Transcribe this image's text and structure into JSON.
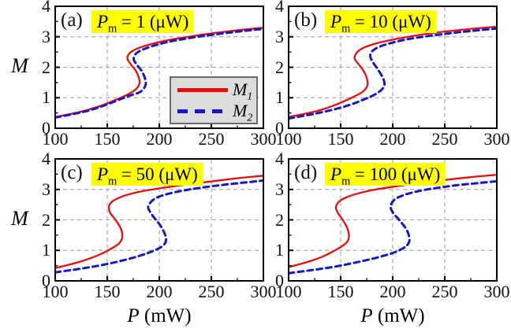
{
  "figure": {
    "colors": {
      "m1": "#e60d0d",
      "m2": "#1717c3",
      "grid": "#ababab",
      "frame": "#000000",
      "text": "#111111",
      "annotation_bg": "#ffff00",
      "legend_bg": "#dcdcdc",
      "legend_border": "#646b76",
      "background": "#ffffff"
    },
    "x_axis": {
      "symbol": "P",
      "unit": "(mW)",
      "tick_labels": [
        "100",
        "150",
        "200",
        "250",
        "300"
      ],
      "tick_values": [
        100,
        150,
        200,
        250,
        300
      ],
      "minor_tick_values": [
        125,
        175,
        225,
        275
      ],
      "grid_values": [
        150,
        200,
        250
      ],
      "range": [
        100,
        300
      ]
    },
    "y_axis": {
      "symbol": "M",
      "tick_labels": [
        "0",
        "1",
        "2",
        "3",
        "4"
      ],
      "tick_values": [
        0,
        1,
        2,
        3,
        4
      ],
      "minor_tick_values": [
        0.5,
        1.5,
        2.5,
        3.5
      ],
      "grid_values": [
        1,
        2,
        3
      ],
      "range": [
        0,
        4
      ]
    },
    "legend": {
      "entries": [
        {
          "symbol": "M",
          "sub": "1",
          "style": "solid",
          "color_key": "m1"
        },
        {
          "symbol": "M",
          "sub": "2",
          "style": "dashed",
          "color_key": "m2"
        }
      ]
    }
  },
  "chart_data": {
    "type": "line",
    "title": "",
    "xlabel": "P (mW)",
    "ylabel": "M",
    "xlim": [
      100,
      300
    ],
    "ylim": [
      0,
      4
    ],
    "grid": true,
    "legend_position": "lower right of panel (a)",
    "panels": [
      {
        "id": "a",
        "letter": "(a)",
        "annotation": {
          "symbol": "P",
          "sub": "m",
          "eq": "=",
          "value": "1",
          "unit": "(μW)"
        },
        "series": [
          {
            "name": "M1",
            "color_key": "m1",
            "style": "solid",
            "points": [
              [
                100,
                0.37
              ],
              [
                115,
                0.47
              ],
              [
                130,
                0.59
              ],
              [
                145,
                0.75
              ],
              [
                158,
                0.93
              ],
              [
                168,
                1.08
              ],
              [
                175,
                1.21
              ],
              [
                180,
                1.38
              ],
              [
                181,
                1.56
              ],
              [
                178,
                1.85
              ],
              [
                173,
                2.08
              ],
              [
                169.5,
                2.27
              ],
              [
                170.5,
                2.42
              ],
              [
                174,
                2.53
              ],
              [
                181,
                2.64
              ],
              [
                192,
                2.76
              ],
              [
                207,
                2.88
              ],
              [
                228,
                3.0
              ],
              [
                252,
                3.12
              ],
              [
                277,
                3.22
              ],
              [
                300,
                3.3
              ]
            ]
          },
          {
            "name": "M2",
            "color_key": "m2",
            "style": "dashed",
            "points": [
              [
                100,
                0.35
              ],
              [
                115,
                0.45
              ],
              [
                130,
                0.56
              ],
              [
                145,
                0.72
              ],
              [
                158,
                0.89
              ],
              [
                170,
                1.05
              ],
              [
                181,
                1.18
              ],
              [
                186,
                1.35
              ],
              [
                187,
                1.53
              ],
              [
                184,
                1.83
              ],
              [
                179,
                2.06
              ],
              [
                175.5,
                2.25
              ],
              [
                176.5,
                2.4
              ],
              [
                180,
                2.51
              ],
              [
                187,
                2.62
              ],
              [
                197,
                2.73
              ],
              [
                211,
                2.85
              ],
              [
                231,
                2.97
              ],
              [
                254,
                3.08
              ],
              [
                278,
                3.18
              ],
              [
                300,
                3.26
              ]
            ]
          }
        ]
      },
      {
        "id": "b",
        "letter": "(b)",
        "annotation": {
          "symbol": "P",
          "sub": "m",
          "eq": "=",
          "value": "10",
          "unit": "(μW)"
        },
        "series": [
          {
            "name": "M1",
            "color_key": "m1",
            "style": "solid",
            "points": [
              [
                100,
                0.37
              ],
              [
                115,
                0.47
              ],
              [
                130,
                0.59
              ],
              [
                143,
                0.74
              ],
              [
                155,
                0.91
              ],
              [
                164,
                1.06
              ],
              [
                171,
                1.19
              ],
              [
                175,
                1.35
              ],
              [
                176,
                1.52
              ],
              [
                173,
                1.82
              ],
              [
                168,
                2.07
              ],
              [
                163.5,
                2.28
              ],
              [
                164.5,
                2.43
              ],
              [
                168,
                2.56
              ],
              [
                175,
                2.68
              ],
              [
                186,
                2.8
              ],
              [
                201,
                2.91
              ],
              [
                220,
                3.03
              ],
              [
                245,
                3.15
              ],
              [
                272,
                3.25
              ],
              [
                300,
                3.33
              ]
            ]
          },
          {
            "name": "M2",
            "color_key": "m2",
            "style": "dashed",
            "points": [
              [
                100,
                0.32
              ],
              [
                115,
                0.41
              ],
              [
                130,
                0.51
              ],
              [
                145,
                0.63
              ],
              [
                160,
                0.78
              ],
              [
                172,
                0.94
              ],
              [
                182,
                1.09
              ],
              [
                189,
                1.25
              ],
              [
                192,
                1.42
              ],
              [
                191,
                1.62
              ],
              [
                186,
                1.92
              ],
              [
                181,
                2.16
              ],
              [
                178.5,
                2.35
              ],
              [
                179.5,
                2.49
              ],
              [
                183,
                2.6
              ],
              [
                190,
                2.71
              ],
              [
                200,
                2.81
              ],
              [
                214,
                2.92
              ],
              [
                233,
                3.02
              ],
              [
                256,
                3.12
              ],
              [
                278,
                3.2
              ],
              [
                300,
                3.27
              ]
            ]
          }
        ]
      },
      {
        "id": "c",
        "letter": "(c)",
        "annotation": {
          "symbol": "P",
          "sub": "m",
          "eq": "=",
          "value": "50",
          "unit": "(μW)"
        },
        "series": [
          {
            "name": "M1",
            "color_key": "m1",
            "style": "solid",
            "points": [
              [
                100,
                0.42
              ],
              [
                112,
                0.52
              ],
              [
                124,
                0.63
              ],
              [
                136,
                0.77
              ],
              [
                147,
                0.93
              ],
              [
                156,
                1.1
              ],
              [
                162,
                1.25
              ],
              [
                164.5,
                1.45
              ],
              [
                163,
                1.72
              ],
              [
                158,
                2.0
              ],
              [
                153,
                2.22
              ],
              [
                151.5,
                2.38
              ],
              [
                152.5,
                2.52
              ],
              [
                156,
                2.63
              ],
              [
                163,
                2.75
              ],
              [
                173,
                2.86
              ],
              [
                187,
                2.96
              ],
              [
                205,
                3.06
              ],
              [
                228,
                3.17
              ],
              [
                252,
                3.27
              ],
              [
                276,
                3.37
              ],
              [
                300,
                3.45
              ]
            ]
          },
          {
            "name": "M2",
            "color_key": "m2",
            "style": "dashed",
            "points": [
              [
                100,
                0.28
              ],
              [
                115,
                0.35
              ],
              [
                130,
                0.43
              ],
              [
                145,
                0.52
              ],
              [
                160,
                0.63
              ],
              [
                175,
                0.76
              ],
              [
                188,
                0.9
              ],
              [
                198,
                1.04
              ],
              [
                204,
                1.17
              ],
              [
                206.5,
                1.33
              ],
              [
                205.5,
                1.52
              ],
              [
                201,
                1.82
              ],
              [
                194,
                2.12
              ],
              [
                189.5,
                2.38
              ],
              [
                190.5,
                2.52
              ],
              [
                193.5,
                2.64
              ],
              [
                199,
                2.75
              ],
              [
                208,
                2.85
              ],
              [
                221,
                2.95
              ],
              [
                239,
                3.05
              ],
              [
                259,
                3.14
              ],
              [
                280,
                3.22
              ],
              [
                300,
                3.29
              ]
            ]
          }
        ]
      },
      {
        "id": "d",
        "letter": "(d)",
        "annotation": {
          "symbol": "P",
          "sub": "m",
          "eq": "=",
          "value": "100",
          "unit": "(μW)"
        },
        "series": [
          {
            "name": "M1",
            "color_key": "m1",
            "style": "solid",
            "points": [
              [
                100,
                0.45
              ],
              [
                111,
                0.55
              ],
              [
                122,
                0.66
              ],
              [
                133,
                0.8
              ],
              [
                143,
                0.97
              ],
              [
                151,
                1.13
              ],
              [
                156,
                1.27
              ],
              [
                158,
                1.46
              ],
              [
                156.5,
                1.72
              ],
              [
                152,
                2.0
              ],
              [
                147.5,
                2.22
              ],
              [
                145.5,
                2.38
              ],
              [
                146.5,
                2.52
              ],
              [
                150,
                2.64
              ],
              [
                157,
                2.76
              ],
              [
                167,
                2.87
              ],
              [
                181,
                2.98
              ],
              [
                199,
                3.08
              ],
              [
                222,
                3.19
              ],
              [
                248,
                3.3
              ],
              [
                274,
                3.4
              ],
              [
                300,
                3.48
              ]
            ]
          },
          {
            "name": "M2",
            "color_key": "m2",
            "style": "dashed",
            "points": [
              [
                100,
                0.25
              ],
              [
                115,
                0.32
              ],
              [
                130,
                0.39
              ],
              [
                145,
                0.47
              ],
              [
                160,
                0.57
              ],
              [
                175,
                0.68
              ],
              [
                190,
                0.81
              ],
              [
                202,
                0.94
              ],
              [
                210,
                1.07
              ],
              [
                215,
                1.22
              ],
              [
                216,
                1.4
              ],
              [
                213.5,
                1.67
              ],
              [
                207,
                1.97
              ],
              [
                201,
                2.2
              ],
              [
                198,
                2.4
              ],
              [
                199,
                2.55
              ],
              [
                202,
                2.67
              ],
              [
                208,
                2.78
              ],
              [
                217,
                2.88
              ],
              [
                230,
                2.98
              ],
              [
                247,
                3.07
              ],
              [
                265,
                3.15
              ],
              [
                283,
                3.21
              ],
              [
                300,
                3.27
              ]
            ]
          }
        ]
      }
    ]
  }
}
